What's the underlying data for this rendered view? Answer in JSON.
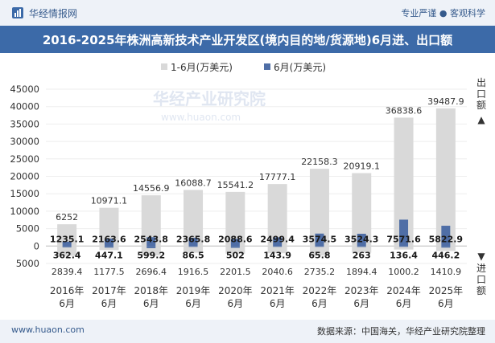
{
  "header": {
    "brand": "华经情报网",
    "slogan": "专业严谨 ● 客观科学"
  },
  "footer": {
    "site": "www.huaon.com",
    "source": "数据来源：中国海关，华经产业研究院整理"
  },
  "watermark": "华经产业研究院",
  "colors": {
    "title_bg": "#3c6aa8",
    "ytd_bar": "#d9d9d9",
    "month_bar": "#4f6ea6"
  },
  "chart_data": {
    "type": "bar",
    "title": "2016-2025年株洲高新技术产业开发区(境内目的地/货源地)6月进、出口额",
    "legend_position": "top",
    "categories": [
      "2016年\n6月",
      "2017年\n6月",
      "2018年\n6月",
      "2019年\n6月",
      "2020年\n6月",
      "2021年\n6月",
      "2022年\n6月",
      "2023年\n6月",
      "2024年\n6月",
      "2025年\n6月"
    ],
    "ylim": [
      -5000,
      45000
    ],
    "yticks": [
      -5000,
      0,
      5000,
      10000,
      15000,
      20000,
      25000,
      30000,
      35000,
      40000,
      45000
    ],
    "ytick_labels": [
      "5000",
      "0",
      "5000",
      "10000",
      "15000",
      "20000",
      "25000",
      "30000",
      "35000",
      "40000",
      "45000"
    ],
    "export_label": "出口额",
    "import_label": "进口额",
    "series": [
      {
        "name": "1-6月(万美元)",
        "direction": "export",
        "values": [
          6252,
          10971.1,
          14556.9,
          16088.7,
          15541.2,
          17777.1,
          22158.3,
          20919.1,
          36838.6,
          39487.9
        ],
        "labels": [
          "6252",
          "10971.1",
          "14556.9",
          "16088.7",
          "15541.2",
          "17777.1",
          "22158.3",
          "20919.1",
          "36838.6",
          "39487.9"
        ]
      },
      {
        "name": "6月(万美元)",
        "direction": "export",
        "values": [
          1235.1,
          2163.6,
          2543.8,
          2365.8,
          2088.6,
          2499.4,
          3574.5,
          3524.3,
          7571.6,
          5822.9
        ],
        "labels": [
          "1235.1",
          "2163.6",
          "2543.8",
          "2365.8",
          "2088.6",
          "2499.4",
          "3574.5",
          "3524.3",
          "7571.6",
          "5822.9"
        ]
      },
      {
        "name": "1-6月(万美元)",
        "direction": "import",
        "values": [
          2839.4,
          1177.5,
          2696.4,
          1916.5,
          2201.5,
          2040.6,
          2735.2,
          1894.4,
          1000.2,
          1410.9
        ],
        "labels": [
          "2839.4",
          "1177.5",
          "2696.4",
          "1916.5",
          "2201.5",
          "2040.6",
          "2735.2",
          "1894.4",
          "1000.2",
          "1410.9"
        ]
      },
      {
        "name": "6月(万美元)",
        "direction": "import",
        "values": [
          362.4,
          447.1,
          599.2,
          86.5,
          502,
          143.9,
          65.8,
          263,
          136.4,
          446.2
        ],
        "labels": [
          "362.4",
          "447.1",
          "599.2",
          "86.5",
          "502",
          "143.9",
          "65.8",
          "263",
          "136.4",
          "446.2"
        ]
      }
    ]
  }
}
